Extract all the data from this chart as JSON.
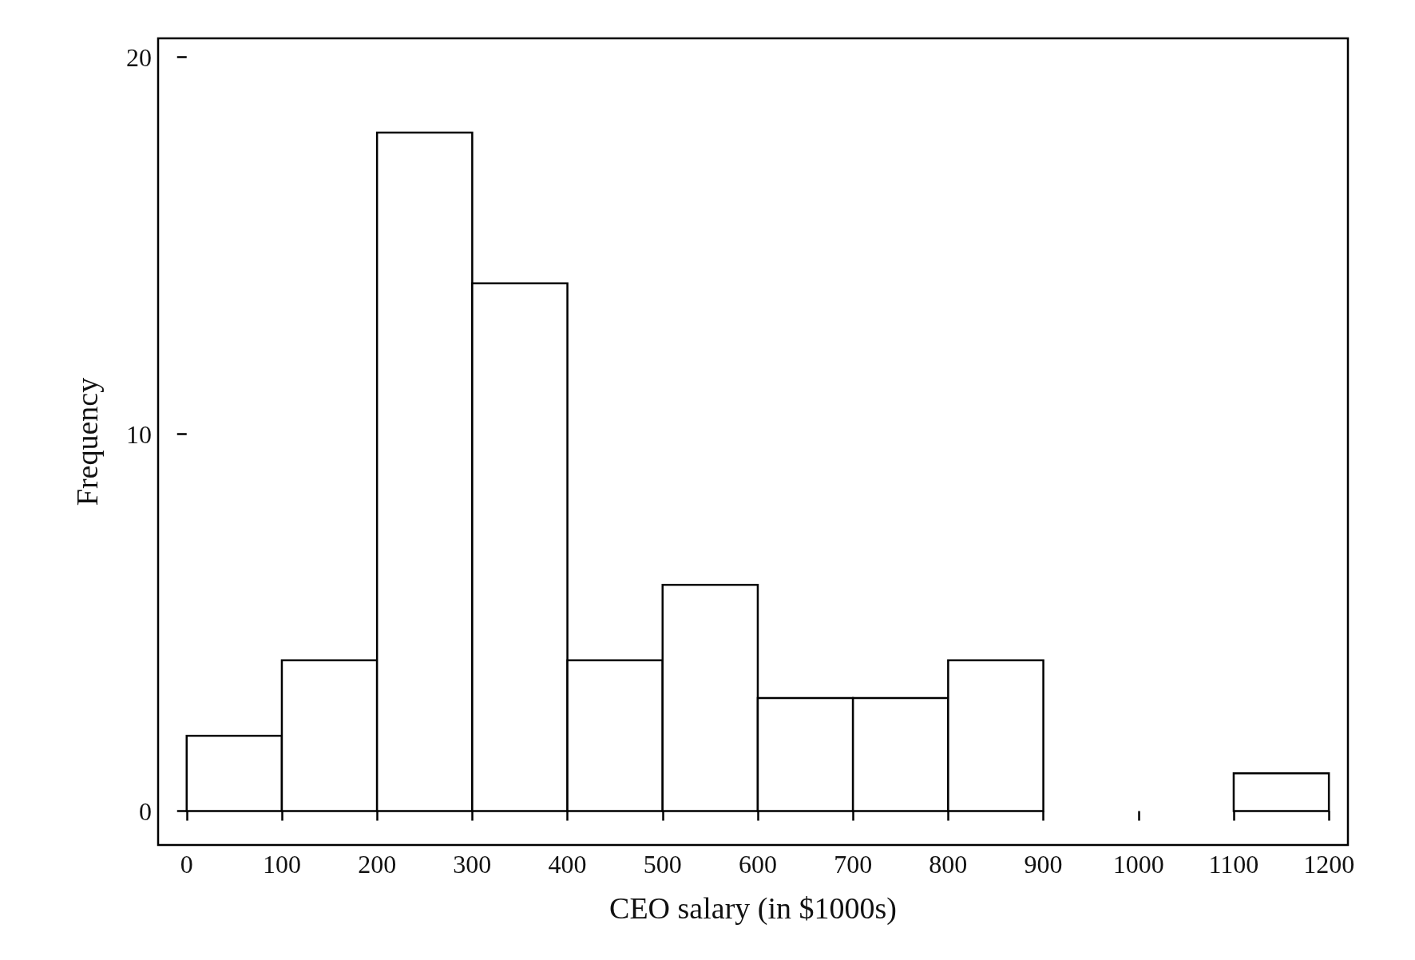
{
  "chart_data": {
    "type": "histogram",
    "xlabel": "CEO salary (in $1000s)",
    "ylabel": "Frequency",
    "bins": [
      0,
      100,
      200,
      300,
      400,
      500,
      600,
      700,
      800,
      900,
      1000,
      1100,
      1200
    ],
    "values": [
      2,
      4,
      18,
      14,
      4,
      6,
      3,
      3,
      4,
      0,
      0,
      1
    ],
    "color": "#ffffff",
    "xlim": [
      -30,
      1220
    ],
    "xticks": [
      0,
      100,
      200,
      300,
      400,
      500,
      600,
      700,
      800,
      900,
      1000,
      1100,
      1200
    ],
    "ylim": [
      -0.9,
      20.5
    ],
    "yticks": [
      0,
      10,
      20
    ],
    "grid": false
  }
}
